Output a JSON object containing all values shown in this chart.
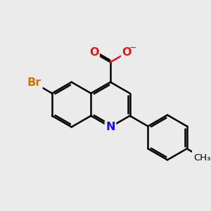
{
  "background_color": "#ebebeb",
  "bond_color": "#000000",
  "bond_width": 1.8,
  "atom_colors": {
    "N": "#1010ee",
    "O": "#ee1010",
    "Br": "#cc7700"
  },
  "figsize": [
    3.0,
    3.0
  ],
  "dpi": 100
}
